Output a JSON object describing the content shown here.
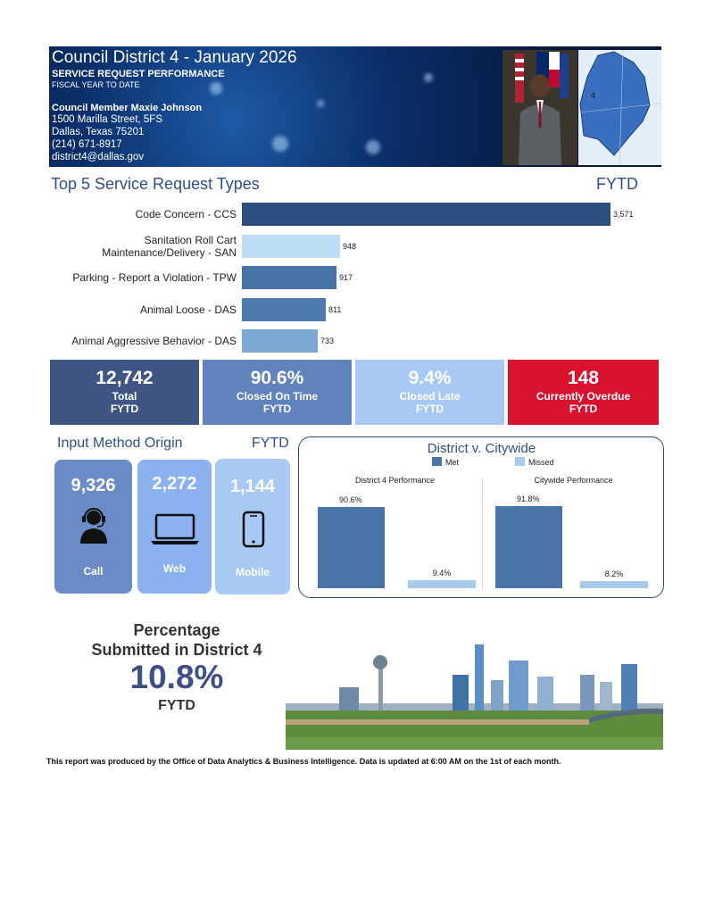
{
  "header": {
    "title": "Council District 4 - January 2026",
    "subtitle": "SERVICE REQUEST PERFORMANCE",
    "subtitle2": "FISCAL YEAR TO DATE",
    "member": "Council Member Maxie Johnson",
    "address1": "1500 Marilla Street, 5FS",
    "address2": "Dallas, Texas 75201",
    "phone": "(214) 671-8917",
    "email": "district4@dallas.gov",
    "map_label": "4"
  },
  "top5": {
    "title": "Top 5 Service Request Types",
    "fytd": "FYTD",
    "chart_data": {
      "type": "bar",
      "orientation": "horizontal",
      "categories": [
        "Code Concern - CCS",
        "Sanitation Roll Cart Maintenance/Delivery - SAN",
        "Parking - Report a Violation - TPW",
        "Animal Loose - DAS",
        "Animal Aggressive Behavior - DAS"
      ],
      "category_lines": [
        [
          "Code Concern - CCS"
        ],
        [
          "Sanitation Roll Cart",
          "Maintenance/Delivery - SAN"
        ],
        [
          "Parking - Report a Violation - TPW"
        ],
        [
          "Animal Loose - DAS"
        ],
        [
          "Animal Aggressive Behavior - DAS"
        ]
      ],
      "values": [
        3571,
        948,
        917,
        811,
        733
      ],
      "value_labels": [
        "3,571",
        "948",
        "917",
        "811",
        "733"
      ],
      "colors": [
        "#2c4f80",
        "#bcdcf3",
        "#4672a8",
        "#4d7bb0",
        "#7aa8d2"
      ],
      "xlim": [
        0,
        3571
      ]
    }
  },
  "kpis": [
    {
      "value": "12,742",
      "label": "Total",
      "fytd": "FYTD",
      "color": "#3f5684"
    },
    {
      "value": "90.6%",
      "label": "Closed On Time",
      "fytd": "FYTD",
      "color": "#6082bd"
    },
    {
      "value": "9.4%",
      "label": "Closed Late",
      "fytd": "FYTD",
      "color": "#a9c9f5"
    },
    {
      "value": "148",
      "label": "Currently Overdue",
      "fytd": "FYTD",
      "color": "#d8132f"
    }
  ],
  "input": {
    "title": "Input Method Origin",
    "fytd": "FYTD",
    "cards": [
      {
        "value": "9,326",
        "label": "Call",
        "icon": "headset-user-icon",
        "color": "#6a8bc6"
      },
      {
        "value": "2,272",
        "label": "Web",
        "icon": "laptop-icon",
        "color": "#8bb2ee"
      },
      {
        "value": "1,144",
        "label": "Mobile",
        "icon": "smartphone-icon",
        "color": "#a9c9f5"
      }
    ]
  },
  "comparison": {
    "title": "District v. Citywide",
    "legend": [
      {
        "label": "Met",
        "color": "#4a73a8"
      },
      {
        "label": "Missed",
        "color": "#a9cbea"
      }
    ],
    "chart_data": [
      {
        "type": "bar",
        "title": "District 4 Performance",
        "categories": [
          "Met",
          "Missed"
        ],
        "values": [
          90.6,
          9.4
        ],
        "value_labels": [
          "90.6%",
          "9.4%"
        ],
        "ylim": [
          0,
          100
        ]
      },
      {
        "type": "bar",
        "title": "Citywide Performance",
        "categories": [
          "Met",
          "Missed"
        ],
        "values": [
          91.8,
          8.2
        ],
        "value_labels": [
          "91.8%",
          "8.2%"
        ],
        "ylim": [
          0,
          100
        ]
      }
    ]
  },
  "percentage": {
    "line1": "Percentage",
    "line2": "Submitted in District 4",
    "value": "10.8%",
    "fytd": "FYTD"
  },
  "footer": "This report was produced by the Office of Data Analytics & Business Intelligence. Data is updated at 6:00 AM on the 1st of each month."
}
